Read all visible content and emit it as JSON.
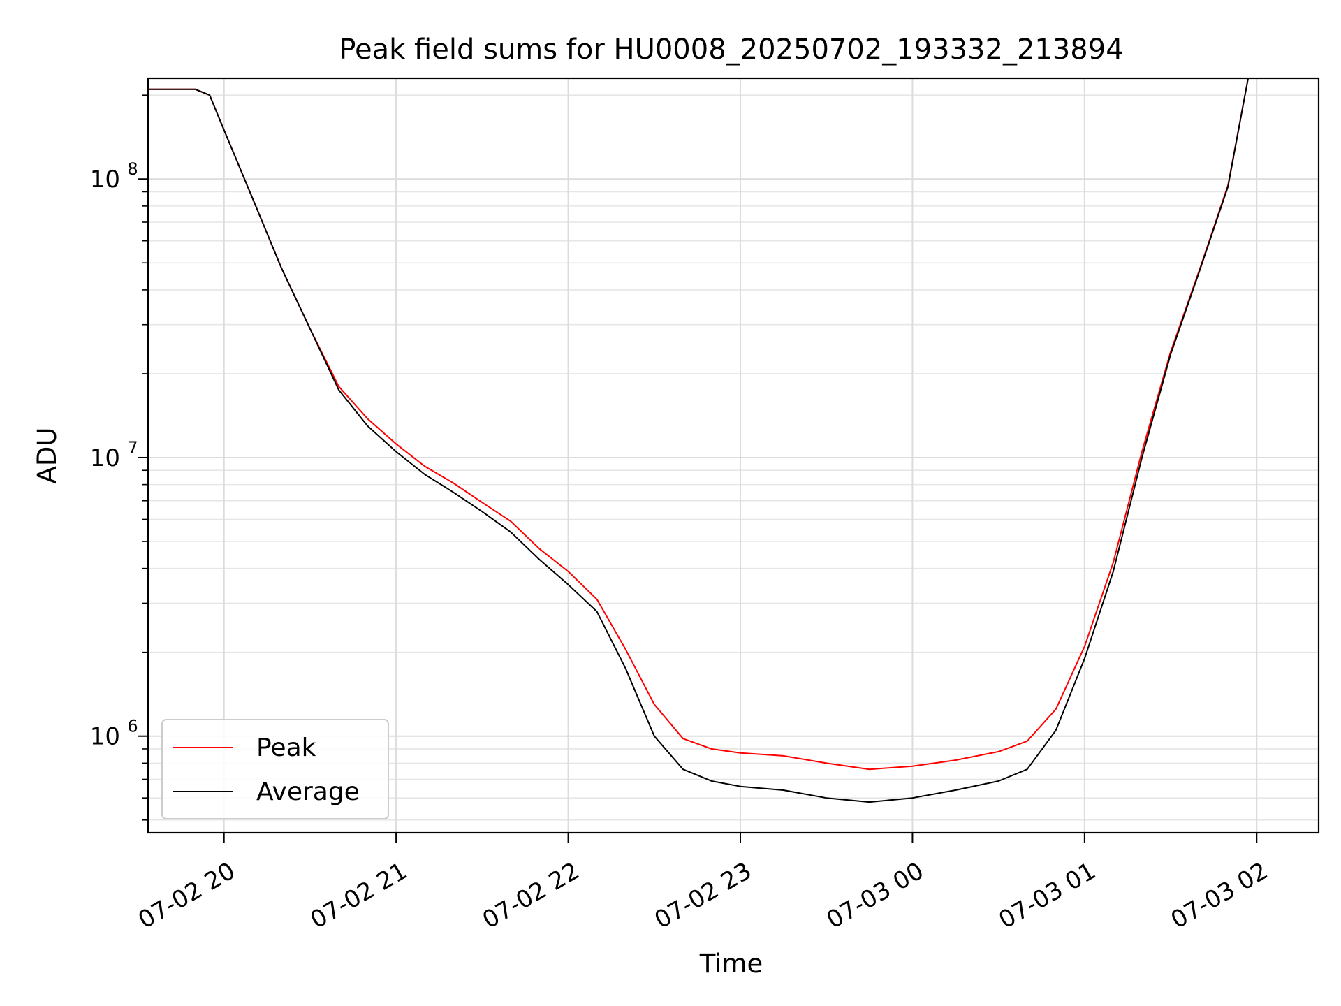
{
  "chart_data": {
    "type": "line",
    "title": "Peak field sums for HU0008_20250702_193332_213894",
    "xlabel": "Time",
    "ylabel": "ADU",
    "x_scale": "time",
    "y_scale": "log",
    "xlim": [
      "2025-07-02 19:33:32",
      "2025-07-03 02:21:36"
    ],
    "ylim": [
      450000,
      230000000
    ],
    "x_ticks": [
      {
        "t": "2025-07-02 20:00",
        "label": "07-02 20"
      },
      {
        "t": "2025-07-02 21:00",
        "label": "07-02 21"
      },
      {
        "t": "2025-07-02 22:00",
        "label": "07-02 22"
      },
      {
        "t": "2025-07-02 23:00",
        "label": "07-02 23"
      },
      {
        "t": "2025-07-03 00:00",
        "label": "07-03 00"
      },
      {
        "t": "2025-07-03 01:00",
        "label": "07-03 01"
      },
      {
        "t": "2025-07-03 02:00",
        "label": "07-03 02"
      }
    ],
    "y_ticks": [
      {
        "value": 1000000,
        "base": "10",
        "exp": "6"
      },
      {
        "value": 10000000,
        "base": "10",
        "exp": "7"
      },
      {
        "value": 100000000,
        "base": "10",
        "exp": "8"
      }
    ],
    "grid": true,
    "legend_position": "lower-left",
    "series": [
      {
        "name": "Peak",
        "color": "#ff0000",
        "x": [
          "2025-07-02 19:33:32",
          "2025-07-02 19:50:00",
          "2025-07-02 19:55:00",
          "2025-07-02 20:00:00",
          "2025-07-02 20:10:00",
          "2025-07-02 20:20:00",
          "2025-07-02 20:30:00",
          "2025-07-02 20:40:00",
          "2025-07-02 20:50:00",
          "2025-07-02 21:00:00",
          "2025-07-02 21:10:00",
          "2025-07-02 21:20:00",
          "2025-07-02 21:30:00",
          "2025-07-02 21:40:00",
          "2025-07-02 21:50:00",
          "2025-07-02 22:00:00",
          "2025-07-02 22:10:00",
          "2025-07-02 22:20:00",
          "2025-07-02 22:30:00",
          "2025-07-02 22:40:00",
          "2025-07-02 22:50:00",
          "2025-07-02 23:00:00",
          "2025-07-02 23:15:00",
          "2025-07-02 23:30:00",
          "2025-07-02 23:45:00",
          "2025-07-03 00:00:00",
          "2025-07-03 00:15:00",
          "2025-07-03 00:30:00",
          "2025-07-03 00:40:00",
          "2025-07-03 00:50:00",
          "2025-07-03 01:00:00",
          "2025-07-03 01:10:00",
          "2025-07-03 01:20:00",
          "2025-07-03 01:30:00",
          "2025-07-03 01:40:00",
          "2025-07-03 01:50:00",
          "2025-07-03 01:57:00",
          "2025-07-03 02:21:36"
        ],
        "values": [
          210000000,
          210000000,
          200000000,
          150000000,
          85000000,
          48000000,
          29000000,
          18000000,
          13800000,
          11200000,
          9300000,
          8100000,
          6900000,
          5900000,
          4700000,
          3900000,
          3100000,
          2050000,
          1300000,
          980000,
          900000,
          870000,
          850000,
          800000,
          760000,
          780000,
          820000,
          880000,
          960000,
          1250000,
          2100000,
          4200000,
          10500000,
          24000000,
          47000000,
          95000000,
          230000000,
          230000000
        ]
      },
      {
        "name": "Average",
        "color": "#000000",
        "x": [
          "2025-07-02 19:33:32",
          "2025-07-02 19:50:00",
          "2025-07-02 19:55:00",
          "2025-07-02 20:00:00",
          "2025-07-02 20:10:00",
          "2025-07-02 20:20:00",
          "2025-07-02 20:30:00",
          "2025-07-02 20:40:00",
          "2025-07-02 20:50:00",
          "2025-07-02 21:00:00",
          "2025-07-02 21:10:00",
          "2025-07-02 21:20:00",
          "2025-07-02 21:30:00",
          "2025-07-02 21:40:00",
          "2025-07-02 21:50:00",
          "2025-07-02 22:00:00",
          "2025-07-02 22:10:00",
          "2025-07-02 22:20:00",
          "2025-07-02 22:30:00",
          "2025-07-02 22:40:00",
          "2025-07-02 22:50:00",
          "2025-07-02 23:00:00",
          "2025-07-02 23:15:00",
          "2025-07-02 23:30:00",
          "2025-07-02 23:45:00",
          "2025-07-03 00:00:00",
          "2025-07-03 00:15:00",
          "2025-07-03 00:30:00",
          "2025-07-03 00:40:00",
          "2025-07-03 00:50:00",
          "2025-07-03 01:00:00",
          "2025-07-03 01:10:00",
          "2025-07-03 01:20:00",
          "2025-07-03 01:30:00",
          "2025-07-03 01:40:00",
          "2025-07-03 01:50:00",
          "2025-07-03 01:57:00",
          "2025-07-03 02:21:36"
        ],
        "values": [
          210000000,
          210000000,
          200000000,
          150000000,
          85000000,
          48000000,
          29000000,
          17500000,
          13000000,
          10500000,
          8700000,
          7500000,
          6400000,
          5400000,
          4300000,
          3500000,
          2800000,
          1750000,
          1000000,
          760000,
          690000,
          660000,
          640000,
          600000,
          580000,
          600000,
          640000,
          690000,
          760000,
          1050000,
          1900000,
          3900000,
          10000000,
          23500000,
          46500000,
          94000000,
          230000000,
          230000000
        ]
      }
    ]
  }
}
